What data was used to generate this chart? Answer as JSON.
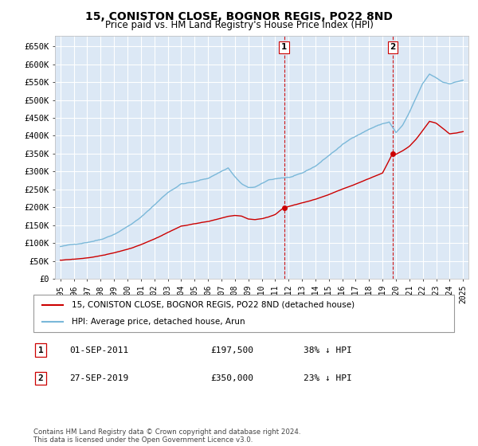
{
  "title": "15, CONISTON CLOSE, BOGNOR REGIS, PO22 8ND",
  "subtitle": "Price paid vs. HM Land Registry's House Price Index (HPI)",
  "title_fontsize": 10,
  "subtitle_fontsize": 8.5,
  "ylim": [
    0,
    680000
  ],
  "yticks": [
    0,
    50000,
    100000,
    150000,
    200000,
    250000,
    300000,
    350000,
    400000,
    450000,
    500000,
    550000,
    600000,
    650000
  ],
  "ytick_labels": [
    "£0",
    "£50K",
    "£100K",
    "£150K",
    "£200K",
    "£250K",
    "£300K",
    "£350K",
    "£400K",
    "£450K",
    "£500K",
    "£550K",
    "£600K",
    "£650K"
  ],
  "xtick_years": [
    1995,
    1996,
    1997,
    1998,
    1999,
    2000,
    2001,
    2002,
    2003,
    2004,
    2005,
    2006,
    2007,
    2008,
    2009,
    2010,
    2011,
    2012,
    2013,
    2014,
    2015,
    2016,
    2017,
    2018,
    2019,
    2020,
    2021,
    2022,
    2023,
    2024,
    2025
  ],
  "hpi_color": "#7ab8d9",
  "price_color": "#cc0000",
  "marker1_x": 2011.67,
  "marker1_y": 197500,
  "marker1_label": "01-SEP-2011",
  "marker1_price": "£197,500",
  "marker1_pct": "38% ↓ HPI",
  "marker2_x": 2019.75,
  "marker2_y": 350000,
  "marker2_label": "27-SEP-2019",
  "marker2_price": "£350,000",
  "marker2_pct": "23% ↓ HPI",
  "vline_color": "#cc0000",
  "background_color": "#dce8f5",
  "grid_color": "#ffffff",
  "legend_line1": "15, CONISTON CLOSE, BOGNOR REGIS, PO22 8ND (detached house)",
  "legend_line2": "HPI: Average price, detached house, Arun",
  "footer": "Contains HM Land Registry data © Crown copyright and database right 2024.\nThis data is licensed under the Open Government Licence v3.0."
}
